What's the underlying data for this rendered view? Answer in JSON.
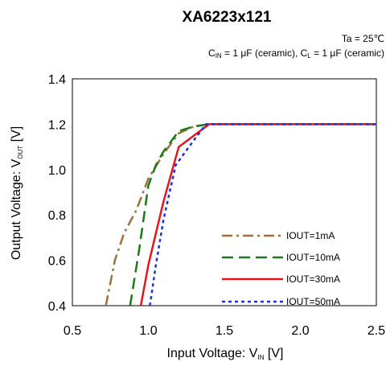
{
  "chart_data": {
    "type": "line",
    "title": "XA6223x121",
    "conditions": {
      "ta": "Ta = 25℃",
      "cin_prefix": "C",
      "cin_sub": "IN",
      "cin_value": " = 1 μF (ceramic), C",
      "cl_sub": "L",
      "cl_value": " = 1 μF (ceramic)"
    },
    "xlabel": {
      "main": "Input Voltage: V",
      "sub": "IN",
      "unit": " [V]"
    },
    "ylabel": {
      "main": "Output Voltage: V",
      "sub": "OUT",
      "unit": " [V]"
    },
    "xlim": [
      0.5,
      2.5
    ],
    "ylim": [
      0.4,
      1.4
    ],
    "xticks": [
      "0.5",
      "1.0",
      "1.5",
      "2.0",
      "2.5"
    ],
    "yticks": [
      "0.4",
      "0.6",
      "0.8",
      "1.0",
      "1.2",
      "1.4"
    ],
    "grid": false,
    "legend_position": "bottom-right",
    "series": [
      {
        "name": "IOUT=1mA",
        "color": "#a0703c",
        "dash": "dash-dot",
        "x": [
          0.72,
          0.78,
          0.84,
          0.92,
          1.0,
          1.1,
          1.2,
          1.3,
          1.4,
          2.5
        ],
        "y": [
          0.4,
          0.6,
          0.72,
          0.82,
          0.96,
          1.07,
          1.16,
          1.19,
          1.2,
          1.2
        ]
      },
      {
        "name": "IOUT=10mA",
        "color": "#1a7a1a",
        "dash": "long-dash",
        "x": [
          0.88,
          0.94,
          1.0,
          1.05,
          1.1,
          1.2,
          1.3,
          1.4,
          2.5
        ],
        "y": [
          0.4,
          0.65,
          0.93,
          1.02,
          1.08,
          1.17,
          1.19,
          1.2,
          1.2
        ]
      },
      {
        "name": "IOUT=30mA",
        "color": "#e8141c",
        "dash": "solid",
        "x": [
          0.95,
          1.0,
          1.1,
          1.2,
          1.3,
          1.4,
          2.5
        ],
        "y": [
          0.4,
          0.58,
          0.86,
          1.1,
          1.15,
          1.2,
          1.2
        ]
      },
      {
        "name": "IOUT=50mA",
        "color": "#1f2fe0",
        "dash": "dot",
        "x": [
          1.01,
          1.05,
          1.1,
          1.18,
          1.3,
          1.38,
          2.5
        ],
        "y": [
          0.4,
          0.58,
          0.78,
          1.02,
          1.13,
          1.2,
          1.2
        ]
      }
    ]
  }
}
